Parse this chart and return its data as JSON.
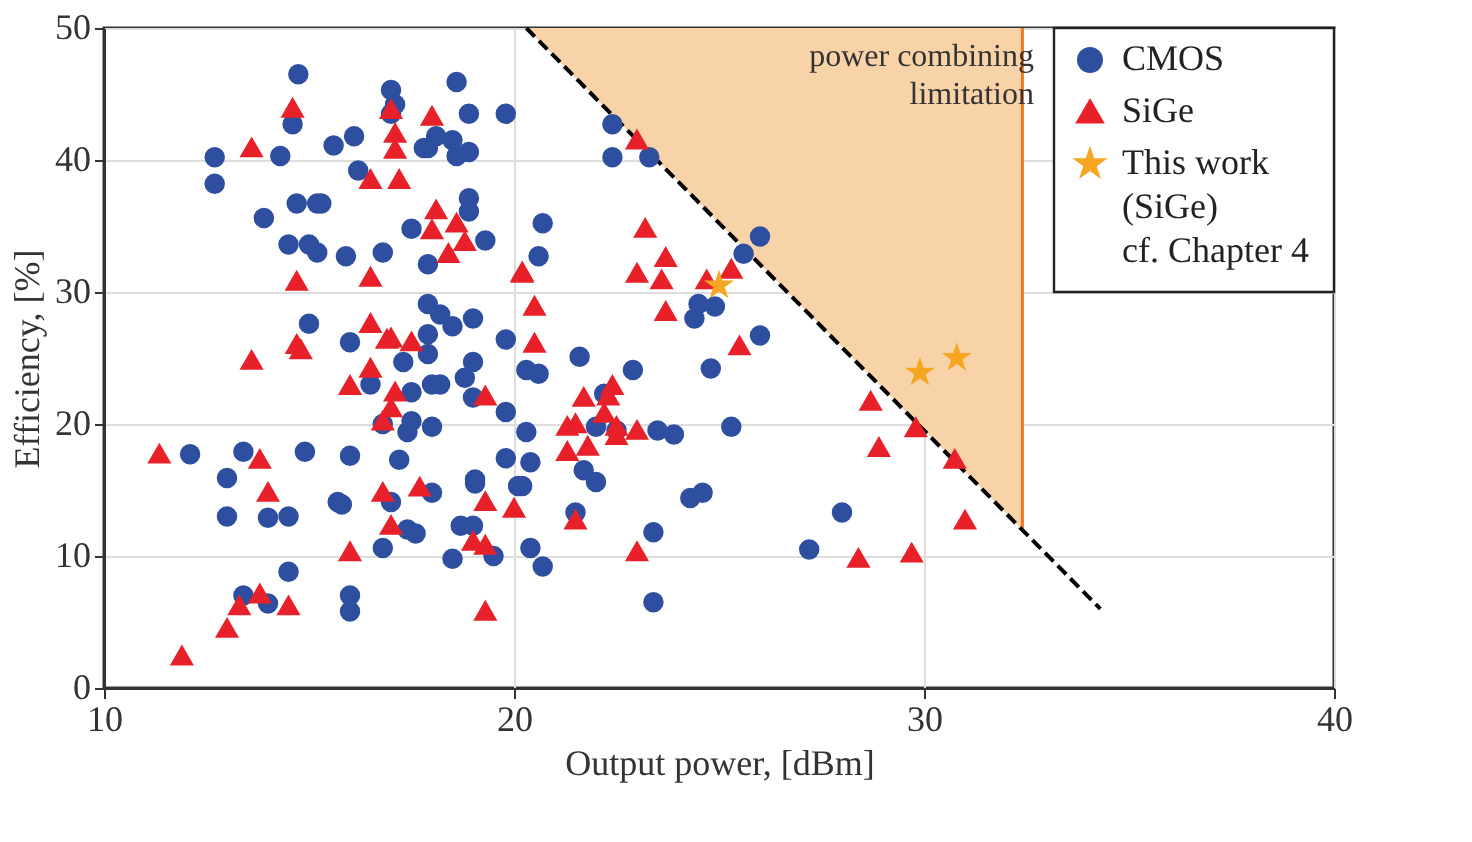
{
  "chart_data": {
    "type": "scatter",
    "xlabel": "Output power, [dBm]",
    "ylabel": "Efficiency, [%]",
    "xlim": [
      10,
      40
    ],
    "ylim": [
      0,
      50
    ],
    "xticks": [
      10,
      20,
      30,
      40
    ],
    "yticks": [
      0,
      10,
      20,
      30,
      40,
      50
    ],
    "grid": true,
    "legend": "top right",
    "annotations": [
      "power combining\nlimitation"
    ],
    "series": [
      {
        "type": "area",
        "color": "#f9d3a8",
        "x": [
          20.3,
          32.4
        ],
        "values": [
          50,
          12
        ]
      },
      {
        "type": "line",
        "color": "#000000",
        "line_style": "dashed",
        "x": [
          20.3,
          34.3
        ],
        "values": [
          50,
          6
        ]
      },
      {
        "name": "CMOS",
        "marker": "circle",
        "color": "#2e4fa0",
        "x": [
          14.74,
          14.6,
          12.7,
          12.7,
          14.3,
          13.9,
          14.7,
          15.2,
          14.5,
          15.0,
          15.2,
          15.0,
          12.1,
          13.4,
          14.9,
          13.0,
          13.0,
          14.0,
          14.5,
          14.5,
          13.4,
          14.0,
          17.0,
          17.1,
          17.0,
          18.6,
          18.9,
          19.8,
          15.6,
          16.1,
          18.1,
          18.5,
          17.8,
          17.9,
          18.6,
          18.9,
          16.2,
          15.3,
          18.9,
          18.9,
          17.5,
          19.3,
          15.9,
          16.8,
          17.9,
          17.9,
          18.2,
          18.5,
          19.0,
          19.8,
          16.0,
          17.9,
          17.3,
          17.9,
          19.0,
          16.5,
          17.5,
          18.0,
          18.2,
          18.8,
          19.0,
          19.8,
          16.8,
          17.5,
          17.4,
          18.0,
          16.0,
          17.2,
          19.8,
          19.05,
          19.05,
          15.7,
          15.8,
          17.0,
          18.0,
          20.1,
          17.4,
          17.6,
          18.7,
          19.0,
          16.8,
          18.5,
          19.5,
          16.0,
          16.0,
          22.4,
          22.4,
          23.3,
          26.0,
          20.7,
          20.6,
          25.6,
          24.5,
          24.4,
          24.9,
          26.0,
          21.6,
          22.9,
          24.8,
          20.3,
          20.6,
          22.2,
          20.3,
          22.0,
          22.5,
          23.5,
          23.9,
          25.3,
          20.4,
          20.2,
          21.7,
          22.0,
          21.5,
          24.3,
          24.6,
          23.4,
          28.0,
          27.2,
          20.4,
          20.7,
          23.4
        ],
        "values": [
          46.5,
          42.7,
          40.2,
          38.2,
          40.3,
          35.6,
          36.7,
          36.7,
          33.6,
          33.6,
          33.0,
          27.6,
          17.7,
          17.9,
          17.9,
          15.9,
          13.0,
          12.9,
          13.0,
          8.8,
          7.0,
          6.4,
          45.3,
          44.2,
          43.5,
          45.9,
          43.5,
          43.5,
          41.1,
          41.8,
          41.8,
          41.5,
          40.9,
          40.9,
          40.3,
          40.6,
          39.2,
          36.7,
          37.1,
          36.1,
          34.8,
          33.9,
          32.7,
          33.0,
          32.1,
          29.1,
          28.3,
          27.4,
          28.0,
          26.4,
          26.2,
          26.8,
          24.7,
          25.3,
          24.7,
          23.0,
          22.4,
          23.0,
          23.0,
          23.5,
          22.0,
          20.9,
          20.0,
          20.2,
          19.4,
          19.8,
          17.6,
          17.3,
          17.4,
          15.8,
          15.5,
          14.1,
          13.9,
          14.1,
          14.8,
          15.3,
          12.0,
          11.7,
          12.3,
          12.3,
          10.6,
          9.8,
          10.0,
          7.0,
          5.8,
          42.7,
          40.2,
          40.2,
          34.2,
          35.2,
          32.7,
          32.9,
          29.1,
          28.0,
          28.9,
          26.7,
          25.1,
          24.1,
          24.2,
          24.1,
          23.8,
          22.3,
          19.4,
          19.8,
          19.5,
          19.5,
          19.2,
          19.8,
          17.1,
          15.3,
          16.5,
          15.6,
          13.3,
          14.4,
          14.8,
          11.8,
          13.3,
          10.5,
          10.6,
          9.2,
          6.5
        ]
      },
      {
        "name": "SiGe",
        "marker": "triangle",
        "color": "#e8202a",
        "x": [
          13.6,
          11.35,
          13.8,
          14.0,
          13.8,
          13.3,
          14.5,
          13.0,
          11.9,
          14.8,
          14.6,
          13.6,
          14.7,
          14.7,
          17.0,
          18.0,
          17.1,
          17.1,
          16.5,
          17.2,
          18.1,
          18.0,
          18.6,
          18.8,
          18.4,
          16.5,
          20.2,
          16.5,
          17.0,
          17.5,
          16.9,
          16.5,
          16.0,
          17.1,
          17.0,
          16.8,
          19.3,
          16.8,
          17.7,
          17.0,
          19.3,
          20.0,
          19.0,
          19.3,
          16.0,
          19.3,
          23.0,
          23.2,
          23.7,
          23.0,
          23.6,
          24.7,
          25.3,
          20.2,
          20.5,
          23.7,
          20.5,
          25.5,
          28.7,
          22.4,
          22.3,
          21.7,
          22.2,
          21.3,
          21.5,
          22.5,
          22.5,
          23.0,
          21.8,
          21.3,
          29.8,
          28.9,
          30.75,
          21.5,
          31.0,
          23.0,
          28.4,
          29.7
        ],
        "values": [
          24.8,
          17.7,
          17.3,
          14.8,
          7.1,
          6.2,
          6.2,
          4.5,
          2.4,
          25.6,
          43.9,
          40.9,
          30.8,
          26.0,
          43.8,
          43.3,
          42.0,
          40.8,
          38.5,
          38.5,
          36.2,
          34.7,
          35.2,
          33.8,
          32.9,
          31.1,
          31.5,
          27.6,
          26.5,
          26.2,
          26.4,
          24.2,
          22.9,
          22.4,
          21.2,
          20.2,
          22.1,
          14.8,
          15.2,
          12.3,
          14.1,
          13.6,
          11.1,
          10.8,
          10.3,
          5.8,
          41.5,
          34.8,
          32.6,
          31.4,
          30.9,
          30.9,
          31.7,
          31.4,
          28.9,
          28.5,
          26.1,
          25.9,
          21.7,
          22.9,
          22.1,
          22.0,
          20.8,
          19.8,
          20.0,
          19.8,
          19.1,
          19.5,
          18.3,
          17.9,
          19.7,
          18.2,
          17.3,
          12.7,
          12.7,
          10.3,
          9.8,
          10.2
        ]
      },
      {
        "name": "This work\n(SiGe)\ncf. Chapter 4",
        "marker": "star",
        "color": "#f5a623",
        "x": [
          25.0,
          29.9,
          30.8
        ],
        "values": [
          30.5,
          23.9,
          25.0
        ]
      }
    ]
  }
}
